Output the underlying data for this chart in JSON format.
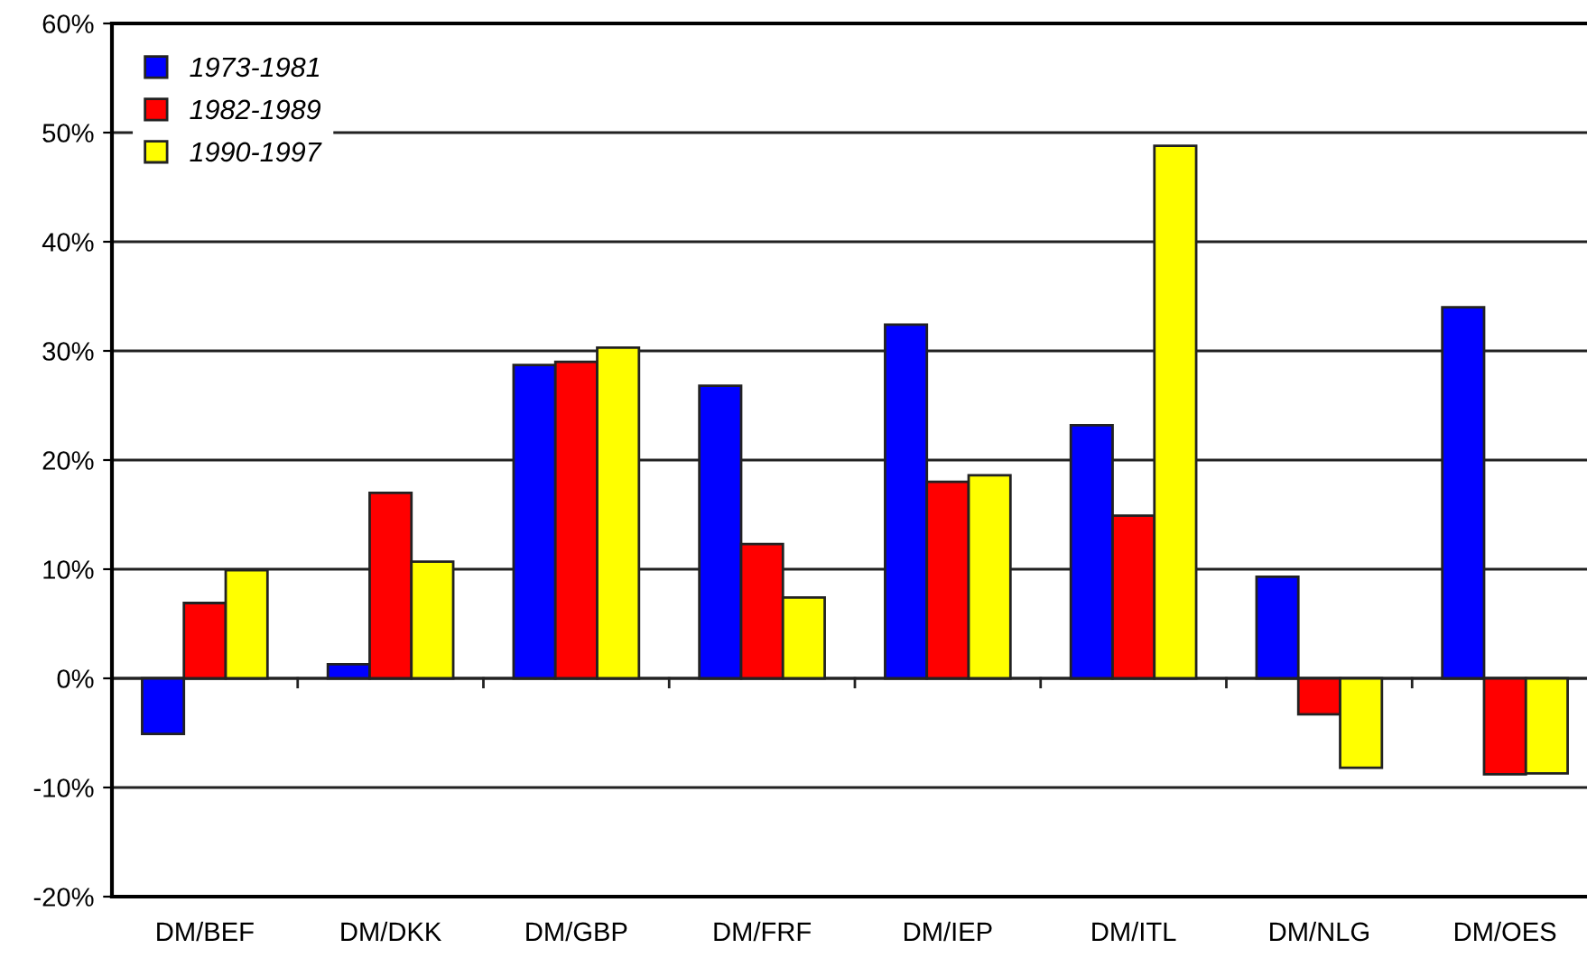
{
  "chart_data": {
    "type": "bar",
    "categories": [
      "DM/BEF",
      "DM/DKK",
      "DM/GBP",
      "DM/FRF",
      "DM/IEP",
      "DM/ITL",
      "DM/NLG",
      "DM/OES"
    ],
    "series": [
      {
        "name": "1973-1981",
        "color": "#0000ff",
        "values": [
          -5.1,
          1.3,
          28.7,
          26.8,
          32.4,
          23.2,
          9.3,
          34.0
        ]
      },
      {
        "name": "1982-1989",
        "color": "#ff0000",
        "values": [
          6.9,
          17.0,
          29.0,
          12.3,
          18.0,
          14.9,
          -3.3,
          -8.8
        ]
      },
      {
        "name": "1990-1997",
        "color": "#ffff00",
        "values": [
          9.9,
          10.7,
          30.3,
          7.4,
          18.6,
          48.8,
          -8.2,
          -8.7
        ]
      }
    ],
    "ylim": [
      -20,
      60
    ],
    "yticks": [
      {
        "value": -20,
        "label": "-20%"
      },
      {
        "value": -10,
        "label": "-10%"
      },
      {
        "value": 0,
        "label": "0%"
      },
      {
        "value": 10,
        "label": "10%"
      },
      {
        "value": 20,
        "label": "20%"
      },
      {
        "value": 30,
        "label": "30%"
      },
      {
        "value": 40,
        "label": "40%"
      },
      {
        "value": 50,
        "label": "50%"
      },
      {
        "value": 60,
        "label": "60%"
      }
    ],
    "grid": "y",
    "legend": "top left"
  }
}
